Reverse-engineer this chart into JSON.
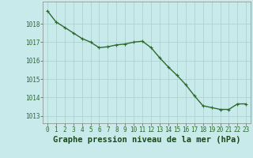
{
  "x": [
    0,
    1,
    2,
    3,
    4,
    5,
    6,
    7,
    8,
    9,
    10,
    11,
    12,
    13,
    14,
    15,
    16,
    17,
    18,
    19,
    20,
    21,
    22,
    23
  ],
  "y": [
    1018.7,
    1018.1,
    1017.8,
    1017.5,
    1017.2,
    1017.0,
    1016.7,
    1016.75,
    1016.85,
    1016.9,
    1017.0,
    1017.05,
    1016.7,
    1016.15,
    1015.65,
    1015.2,
    1014.7,
    1014.1,
    1013.55,
    1013.45,
    1013.35,
    1013.35,
    1013.65,
    1013.65
  ],
  "line_color": "#2d6a2d",
  "marker_color": "#2d6a2d",
  "bg_color": "#c8eaea",
  "grid_color": "#a8d0cc",
  "xlabel": "Graphe pression niveau de la mer (hPa)",
  "xlabel_color": "#1a4a1a",
  "ylim": [
    1012.6,
    1019.2
  ],
  "yticks": [
    1013,
    1014,
    1015,
    1016,
    1017,
    1018
  ],
  "xtick_labels": [
    "0",
    "1",
    "2",
    "3",
    "4",
    "5",
    "6",
    "7",
    "8",
    "9",
    "10",
    "11",
    "12",
    "13",
    "14",
    "15",
    "16",
    "17",
    "18",
    "19",
    "20",
    "21",
    "22",
    "23"
  ],
  "tick_color": "#2d6a2d",
  "tick_fontsize": 5.5,
  "xlabel_fontsize": 7.5,
  "line_width": 1.0,
  "marker_size": 2.5,
  "marker_style": "+"
}
